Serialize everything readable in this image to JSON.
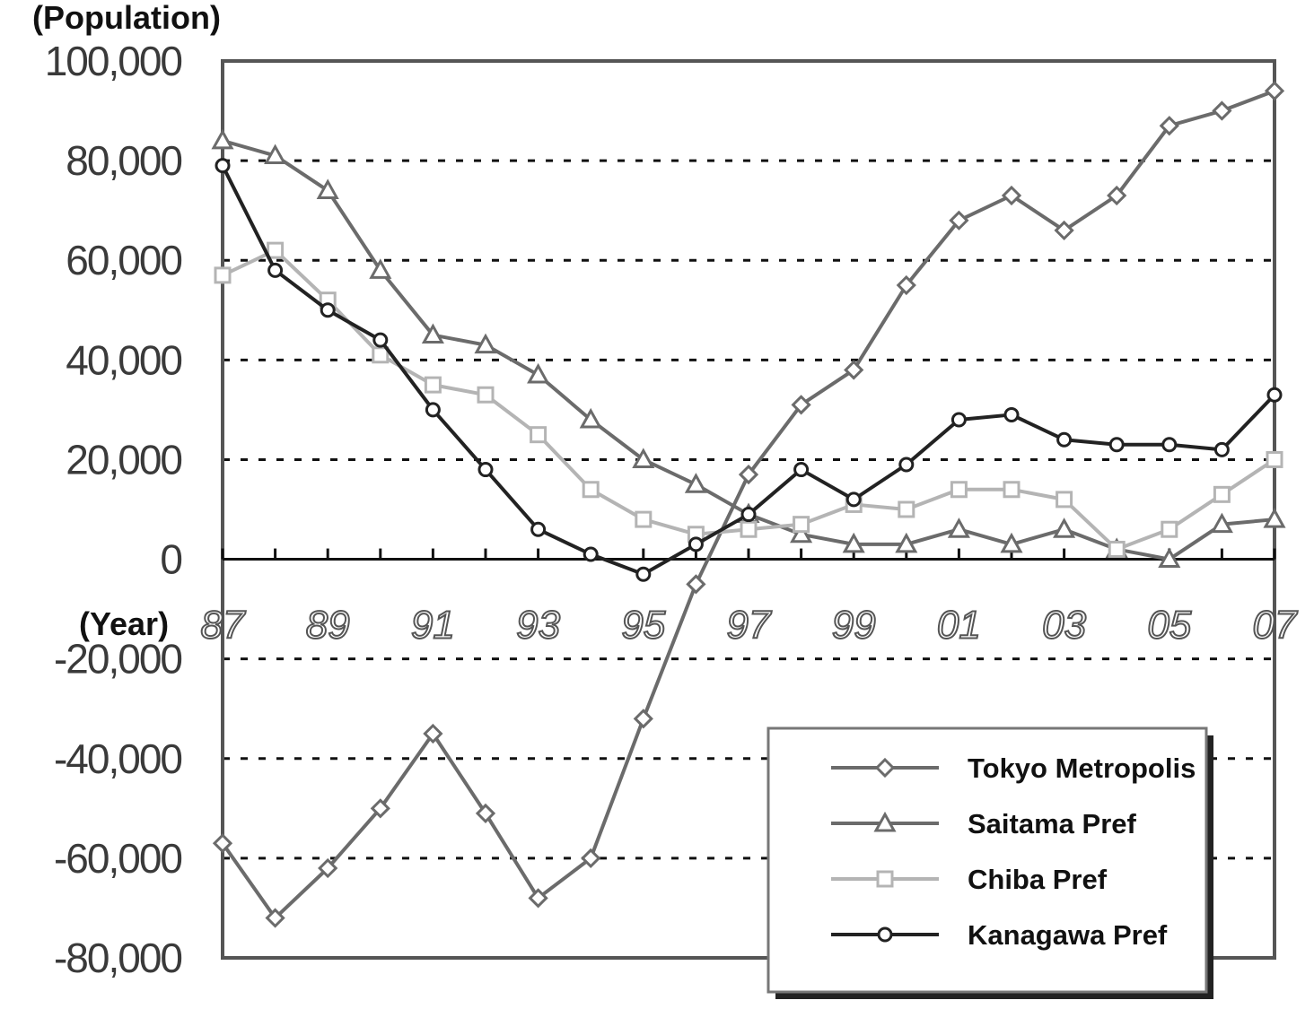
{
  "chart_data": {
    "type": "line",
    "ylabel": "(Population)",
    "xlabel": "(Year)",
    "ylim": [
      -80000,
      100000
    ],
    "yticks": [
      {
        "value": 100000,
        "label": "100,000"
      },
      {
        "value": 80000,
        "label": "80,000"
      },
      {
        "value": 60000,
        "label": "60,000"
      },
      {
        "value": 40000,
        "label": "40,000"
      },
      {
        "value": 20000,
        "label": "20,000"
      },
      {
        "value": 0,
        "label": "0"
      },
      {
        "value": -20000,
        "label": "-20,000"
      },
      {
        "value": -40000,
        "label": "-40,000"
      },
      {
        "value": -60000,
        "label": "-60,000"
      },
      {
        "value": -80000,
        "label": "-80,000"
      }
    ],
    "x": [
      1987,
      1988,
      1989,
      1990,
      1991,
      1992,
      1993,
      1994,
      1995,
      1996,
      1997,
      1998,
      1999,
      2000,
      2001,
      2002,
      2003,
      2004,
      2005,
      2006,
      2007
    ],
    "xticks": [
      {
        "value": 1987,
        "label": "87"
      },
      {
        "value": 1989,
        "label": "89"
      },
      {
        "value": 1991,
        "label": "91"
      },
      {
        "value": 1993,
        "label": "93"
      },
      {
        "value": 1995,
        "label": "95"
      },
      {
        "value": 1997,
        "label": "97"
      },
      {
        "value": 1999,
        "label": "99"
      },
      {
        "value": 2001,
        "label": "01"
      },
      {
        "value": 2003,
        "label": "03"
      },
      {
        "value": 2005,
        "label": "05"
      },
      {
        "value": 2007,
        "label": "07"
      }
    ],
    "grid": true,
    "legend_position": "bottom-right",
    "series": [
      {
        "name": "Tokyo Metropolis",
        "marker": "diamond",
        "color": "#6b6b6b",
        "values": [
          -57000,
          -72000,
          -62000,
          -50000,
          -35000,
          -51000,
          -68000,
          -60000,
          -32000,
          -5000,
          17000,
          31000,
          38000,
          55000,
          68000,
          73000,
          66000,
          73000,
          87000,
          90000,
          94000
        ]
      },
      {
        "name": "Saitama Pref",
        "marker": "triangle",
        "color": "#6b6b6b",
        "values": [
          84000,
          81000,
          74000,
          58000,
          45000,
          43000,
          37000,
          28000,
          20000,
          15000,
          9000,
          5000,
          3000,
          3000,
          6000,
          3000,
          6000,
          2000,
          0,
          7000,
          8000
        ]
      },
      {
        "name": "Chiba Pref",
        "marker": "square",
        "color": "#b4b4b4",
        "values": [
          57000,
          62000,
          52000,
          41000,
          35000,
          33000,
          25000,
          14000,
          8000,
          5000,
          6000,
          7000,
          11000,
          10000,
          14000,
          14000,
          12000,
          2000,
          6000,
          13000,
          20000
        ]
      },
      {
        "name": "Kanagawa Pref",
        "marker": "circle",
        "color": "#222222",
        "values": [
          79000,
          58000,
          50000,
          44000,
          30000,
          18000,
          6000,
          1000,
          -3000,
          3000,
          9000,
          18000,
          12000,
          19000,
          28000,
          29000,
          24000,
          23000,
          23000,
          22000,
          33000
        ]
      }
    ]
  }
}
